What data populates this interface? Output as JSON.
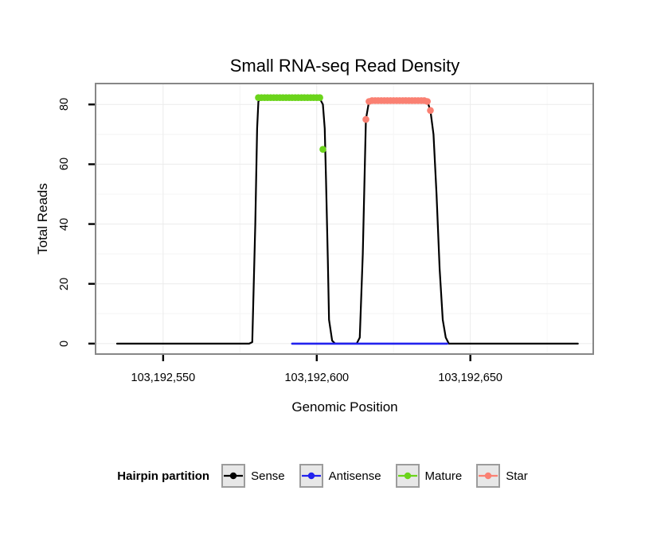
{
  "chart_data": {
    "type": "line",
    "title": "Small RNA-seq Read Density",
    "xlabel": "Genomic Position",
    "ylabel": "Total Reads",
    "legend_title": "Hairpin partition",
    "legend_position": "bottom",
    "grid": "major and minor, very light",
    "xlim": [
      103192528,
      103192690
    ],
    "ylim": [
      -3.5,
      87
    ],
    "xticks": [
      {
        "value": 103192550,
        "label": "103,192,550"
      },
      {
        "value": 103192600,
        "label": "103,192,600"
      },
      {
        "value": 103192650,
        "label": "103,192,650"
      }
    ],
    "yticks": [
      {
        "value": 0,
        "label": "0"
      },
      {
        "value": 20,
        "label": "20"
      },
      {
        "value": 40,
        "label": "40"
      },
      {
        "value": 60,
        "label": "60"
      },
      {
        "value": 80,
        "label": "80"
      }
    ],
    "colors": {
      "background": "#ffffff",
      "panel_border": "#878787",
      "grid_major": "#ebebeb",
      "grid_minor": "#f6f6f6",
      "tick": "#000000"
    },
    "series": [
      {
        "name": "Sense",
        "color": "#000000",
        "type": "line",
        "points": [
          [
            103192535,
            0
          ],
          [
            103192578,
            0
          ],
          [
            103192579,
            0.5
          ],
          [
            103192580,
            40
          ],
          [
            103192580.6,
            72
          ],
          [
            103192581,
            81
          ],
          [
            103192582,
            82.3
          ],
          [
            103192600,
            82.3
          ],
          [
            103192601,
            82
          ],
          [
            103192602,
            80
          ],
          [
            103192602.6,
            72
          ],
          [
            103192603,
            55
          ],
          [
            103192603.6,
            28
          ],
          [
            103192604,
            8
          ],
          [
            103192605,
            1
          ],
          [
            103192606,
            0
          ],
          [
            103192613,
            0
          ],
          [
            103192614,
            2
          ],
          [
            103192615,
            30
          ],
          [
            103192616,
            75
          ],
          [
            103192617,
            81
          ],
          [
            103192618,
            81.3
          ],
          [
            103192635,
            81.3
          ],
          [
            103192636,
            81
          ],
          [
            103192637,
            78
          ],
          [
            103192638,
            70
          ],
          [
            103192639,
            50
          ],
          [
            103192640,
            25
          ],
          [
            103192641,
            8
          ],
          [
            103192642,
            2
          ],
          [
            103192643,
            0
          ],
          [
            103192685,
            0
          ]
        ]
      },
      {
        "name": "Antisense",
        "color": "#2222ee",
        "type": "line",
        "line_width": 2.6,
        "points": [
          [
            103192592,
            0
          ],
          [
            103192642.5,
            0
          ]
        ]
      },
      {
        "name": "Mature",
        "color": "#6bd41b",
        "type": "points",
        "points": [
          [
            103192581,
            82.3
          ],
          [
            103192582,
            82.3
          ],
          [
            103192583,
            82.3
          ],
          [
            103192584,
            82.3
          ],
          [
            103192585,
            82.3
          ],
          [
            103192586,
            82.3
          ],
          [
            103192587,
            82.3
          ],
          [
            103192588,
            82.3
          ],
          [
            103192589,
            82.3
          ],
          [
            103192590,
            82.3
          ],
          [
            103192591,
            82.3
          ],
          [
            103192592,
            82.3
          ],
          [
            103192593,
            82.3
          ],
          [
            103192594,
            82.3
          ],
          [
            103192595,
            82.3
          ],
          [
            103192596,
            82.3
          ],
          [
            103192597,
            82.3
          ],
          [
            103192598,
            82.3
          ],
          [
            103192599,
            82.3
          ],
          [
            103192600,
            82.3
          ],
          [
            103192601,
            82.3
          ],
          [
            103192602,
            65
          ]
        ]
      },
      {
        "name": "Star",
        "color": "#fa8072",
        "type": "points",
        "points": [
          [
            103192616,
            75
          ],
          [
            103192617,
            81
          ],
          [
            103192618,
            81.3
          ],
          [
            103192619,
            81.3
          ],
          [
            103192620,
            81.3
          ],
          [
            103192621,
            81.3
          ],
          [
            103192622,
            81.3
          ],
          [
            103192623,
            81.3
          ],
          [
            103192624,
            81.3
          ],
          [
            103192625,
            81.3
          ],
          [
            103192626,
            81.3
          ],
          [
            103192627,
            81.3
          ],
          [
            103192628,
            81.3
          ],
          [
            103192629,
            81.3
          ],
          [
            103192630,
            81.3
          ],
          [
            103192631,
            81.3
          ],
          [
            103192632,
            81.3
          ],
          [
            103192633,
            81.3
          ],
          [
            103192634,
            81.3
          ],
          [
            103192635,
            81.3
          ],
          [
            103192636,
            81
          ],
          [
            103192637,
            78
          ]
        ]
      }
    ]
  }
}
